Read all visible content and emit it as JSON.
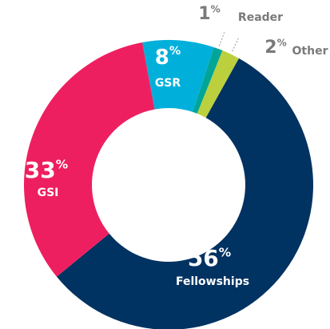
{
  "chart_data": {
    "type": "donut",
    "categories": [
      "GSR",
      "Reader",
      "Other",
      "Fellowships",
      "GSI"
    ],
    "values": [
      8,
      1,
      2,
      56,
      33
    ],
    "value_labels": [
      "8%",
      "1%",
      "2%",
      "56%",
      "33%"
    ],
    "colors": [
      "#00b0da",
      "#00a598",
      "#bcd03e",
      "#003262",
      "#ee1f60"
    ]
  }
}
